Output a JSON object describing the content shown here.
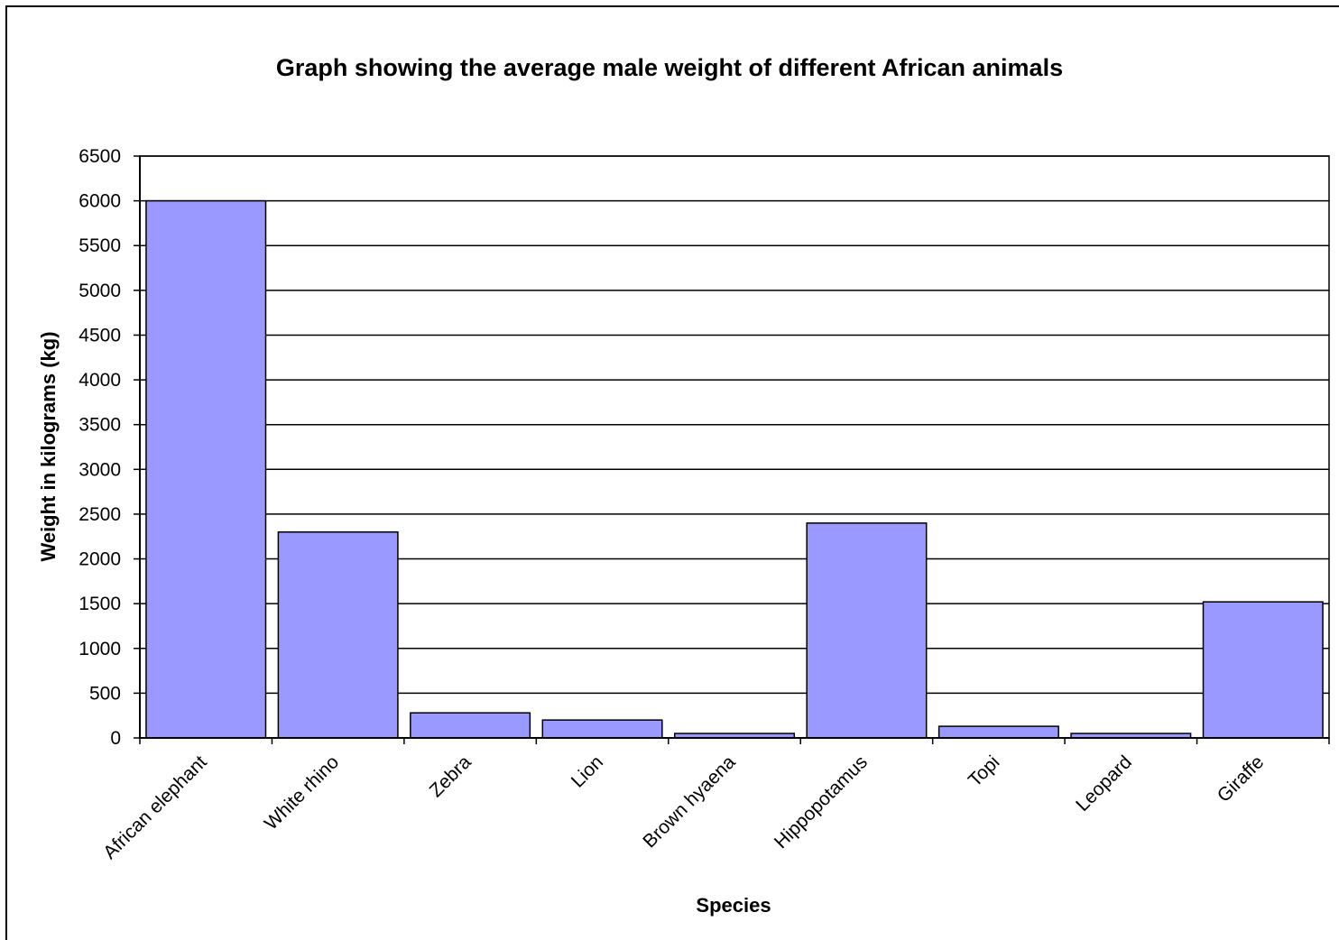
{
  "chart_data": {
    "type": "bar",
    "title": "Graph showing the average male weight of different African animals",
    "xlabel": "Species",
    "ylabel": "Weight in kilograms (kg)",
    "categories": [
      "African elephant",
      "White rhino",
      "Zebra",
      "Lion",
      "Brown hyaena",
      "Hippopotamus",
      "Topi",
      "Leopard",
      "Giraffe"
    ],
    "values": [
      6000,
      2300,
      280,
      200,
      50,
      2400,
      130,
      50,
      1520
    ],
    "ylim": [
      0,
      6500
    ],
    "yticks": [
      0,
      500,
      1000,
      1500,
      2000,
      2500,
      3000,
      3500,
      4000,
      4500,
      5000,
      5500,
      6000,
      6500
    ],
    "grid": true,
    "legend": "none",
    "bar_color": "#9999ff"
  }
}
